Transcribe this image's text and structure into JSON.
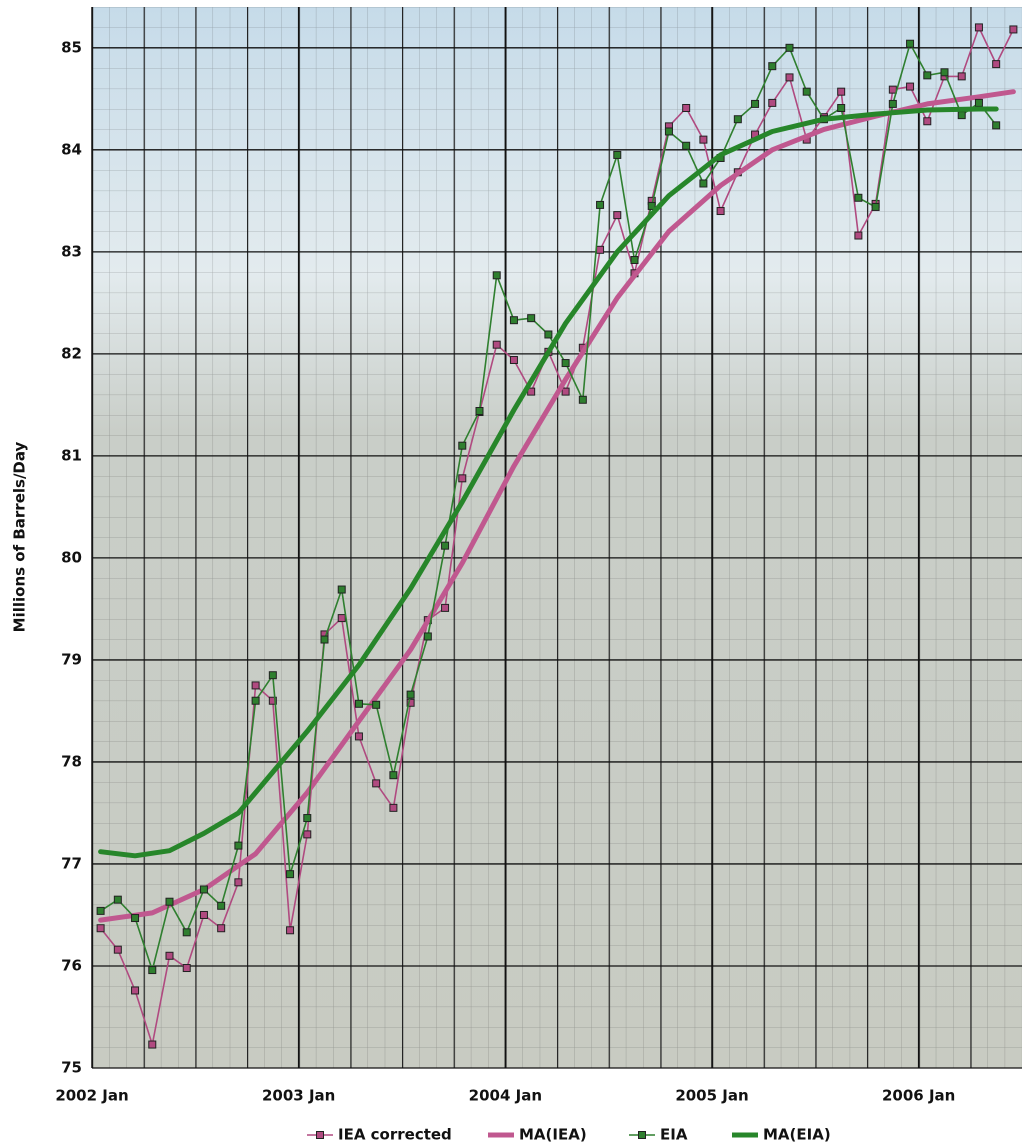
{
  "chart_data": {
    "type": "line",
    "y_label": "Millions of Barrels/Day",
    "x": [
      0.5,
      1.5,
      2.5,
      3.5,
      4.5,
      5.5,
      6.5,
      7.5,
      8.5,
      9.5,
      10.5,
      11.5,
      12.5,
      13.5,
      14.5,
      15.5,
      16.5,
      17.5,
      18.5,
      19.5,
      20.5,
      21.5,
      22.5,
      23.5,
      24.5,
      25.5,
      26.5,
      27.5,
      28.5,
      29.5,
      30.5,
      31.5,
      32.5,
      33.5,
      34.5,
      35.5,
      36.5,
      37.5,
      38.5,
      39.5,
      40.5,
      41.5,
      42.5,
      43.5,
      44.5,
      45.5,
      46.5,
      47.5,
      48.5,
      49.5,
      50.5,
      51.5,
      52.5,
      53.5
    ],
    "series": [
      {
        "name": "IEA corrected",
        "color": "#b04a80",
        "marker": "square",
        "values": [
          76.37,
          76.16,
          75.76,
          75.23,
          76.1,
          75.98,
          76.5,
          76.37,
          76.82,
          78.75,
          78.6,
          76.35,
          77.29,
          79.25,
          79.41,
          78.25,
          77.79,
          77.55,
          78.58,
          79.39,
          79.51,
          80.78,
          81.43,
          82.09,
          81.94,
          81.63,
          82.02,
          81.63,
          82.06,
          83.02,
          83.36,
          82.79,
          83.5,
          84.23,
          84.41,
          84.1,
          83.4,
          83.78,
          84.15,
          84.46,
          84.71,
          84.1,
          84.32,
          84.57,
          83.16,
          83.47,
          84.59,
          84.62,
          84.28,
          84.72,
          84.72,
          85.2,
          84.84,
          85.18
        ]
      },
      {
        "name": "MA(IEA)",
        "color": "#c0588f",
        "x": [
          0.5,
          3.5,
          6.5,
          9.5,
          12.5,
          15.5,
          18.5,
          21.5,
          24.5,
          27.5,
          30.5,
          33.5,
          36.5,
          39.5,
          42.5,
          45.5,
          48.5,
          51.5,
          53.5
        ],
        "values": [
          76.45,
          76.52,
          76.75,
          77.1,
          77.7,
          78.4,
          79.1,
          79.95,
          80.9,
          81.75,
          82.55,
          83.2,
          83.65,
          84.0,
          84.2,
          84.33,
          84.45,
          84.52,
          84.57
        ]
      },
      {
        "name": "EIA",
        "color": "#2f7f2f",
        "marker": "square",
        "values": [
          76.54,
          76.65,
          76.47,
          75.96,
          76.63,
          76.33,
          76.75,
          76.59,
          77.18,
          78.6,
          78.85,
          76.9,
          77.45,
          79.2,
          79.69,
          78.57,
          78.56,
          77.87,
          78.66,
          79.23,
          80.12,
          81.1,
          81.44,
          82.77,
          82.33,
          82.35,
          82.19,
          81.91,
          81.55,
          83.46,
          83.95,
          82.92,
          83.45,
          84.18,
          84.04,
          83.67,
          83.92,
          84.3,
          84.45,
          84.82,
          85.0,
          84.57,
          84.3,
          84.41,
          83.53,
          83.44,
          84.45,
          85.04,
          84.73,
          84.76,
          84.34,
          84.46,
          84.24,
          null
        ]
      },
      {
        "name": "MA(EIA)",
        "color": "#27862a",
        "x": [
          0.5,
          2.5,
          4.5,
          6.5,
          8.5,
          10.5,
          12.5,
          15.5,
          18.5,
          21.5,
          24.5,
          27.5,
          30.5,
          33.5,
          36.5,
          39.5,
          42.5,
          45.5,
          48.5,
          51.5,
          52.5
        ],
        "values": [
          77.12,
          77.08,
          77.13,
          77.3,
          77.5,
          77.9,
          78.3,
          78.95,
          79.7,
          80.55,
          81.45,
          82.3,
          83.0,
          83.55,
          83.95,
          84.18,
          84.3,
          84.35,
          84.39,
          84.4,
          84.4
        ]
      }
    ],
    "xlim": [
      0,
      54
    ],
    "xticks": [
      {
        "value": 0,
        "label": "2002 Jan"
      },
      {
        "value": 12,
        "label": "2003 Jan"
      },
      {
        "value": 24,
        "label": "2004 Jan"
      },
      {
        "value": 36,
        "label": "2005 Jan"
      },
      {
        "value": 48,
        "label": "2006 Jan"
      }
    ],
    "ylim": [
      75,
      85.4
    ],
    "yticks": [
      75,
      76,
      77,
      78,
      79,
      80,
      81,
      82,
      83,
      84,
      85
    ],
    "grid": true,
    "legend": "bottom"
  }
}
